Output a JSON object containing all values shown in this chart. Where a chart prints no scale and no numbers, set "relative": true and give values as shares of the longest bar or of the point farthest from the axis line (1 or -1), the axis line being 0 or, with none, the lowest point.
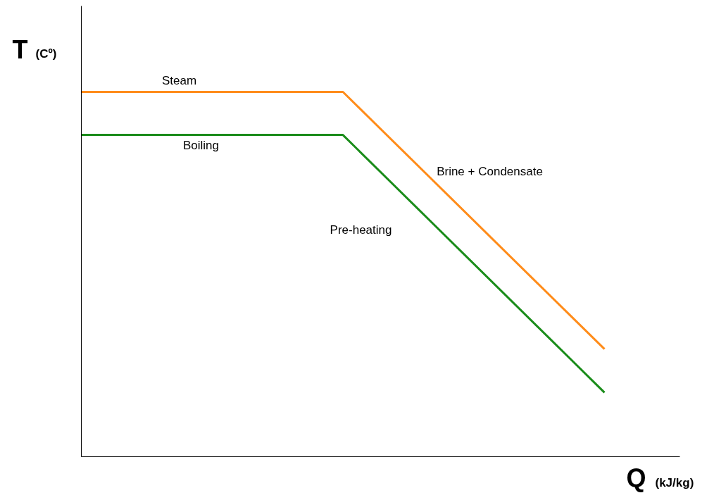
{
  "chart_data": {
    "type": "line",
    "relative": true,
    "xlabel": "Q (kJ/kg)",
    "ylabel": "T (Cº)",
    "categories": [
      null,
      null,
      null
    ],
    "series": [
      {
        "color": "#ff8c1a",
        "values": [
          1,
          1,
          0.295
        ]
      },
      {
        "color": "#1a8c1a",
        "values": [
          0.882,
          0.882,
          0.176
        ]
      }
    ],
    "annotations": [
      "Steam",
      "Boiling",
      "Brine + Condensate",
      "Pre-heating"
    ],
    "marker": "none",
    "line_style": "solid"
  }
}
